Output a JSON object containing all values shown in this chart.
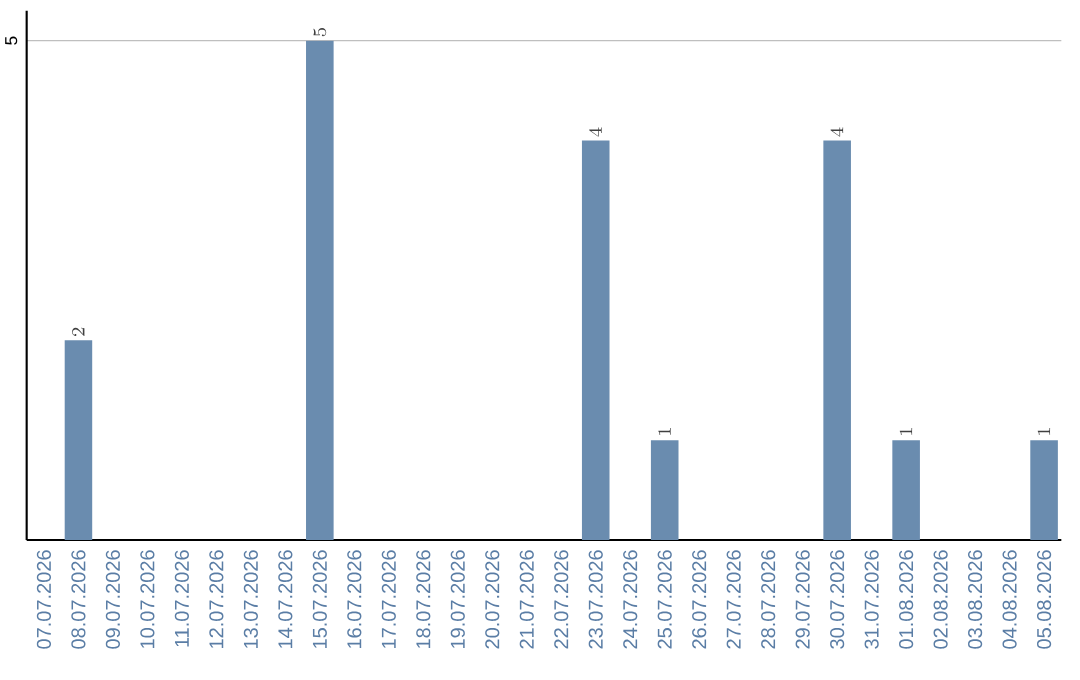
{
  "chart_data": {
    "type": "bar",
    "categories": [
      "07.07.2026",
      "08.07.2026",
      "09.07.2026",
      "10.07.2026",
      "11.07.2026",
      "12.07.2026",
      "13.07.2026",
      "14.07.2026",
      "15.07.2026",
      "16.07.2026",
      "17.07.2026",
      "18.07.2026",
      "19.07.2026",
      "20.07.2026",
      "21.07.2026",
      "22.07.2026",
      "23.07.2026",
      "24.07.2026",
      "25.07.2026",
      "26.07.2026",
      "27.07.2026",
      "28.07.2026",
      "29.07.2026",
      "30.07.2026",
      "31.07.2026",
      "01.08.2026",
      "02.08.2026",
      "03.08.2026",
      "04.08.2026",
      "05.08.2026"
    ],
    "values": [
      null,
      2,
      null,
      null,
      null,
      null,
      null,
      null,
      5,
      null,
      null,
      null,
      null,
      null,
      null,
      null,
      4,
      null,
      1,
      null,
      null,
      null,
      null,
      4,
      null,
      1,
      null,
      null,
      null,
      1
    ],
    "color": "#6a8caf",
    "ylim": [
      0,
      5.3
    ],
    "yticks": [
      5
    ],
    "grid": "y",
    "data_labels": true
  }
}
